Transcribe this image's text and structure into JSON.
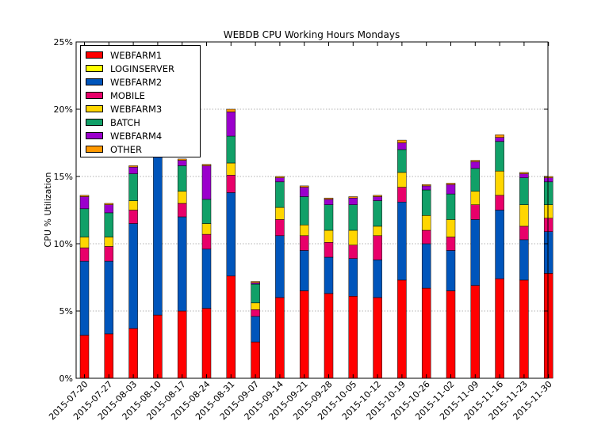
{
  "chart_data": {
    "type": "bar",
    "stacked": true,
    "title": "WEBDB CPU Working Hours Mondays",
    "xlabel": "",
    "ylabel": "CPU % Utilization",
    "ylim": [
      0,
      25
    ],
    "yticks": [
      0,
      5,
      10,
      15,
      20,
      25
    ],
    "ytick_labels": [
      "0%",
      "5%",
      "10%",
      "15%",
      "20%",
      "25%"
    ],
    "grid": "horizontal",
    "legend_position": "top-left",
    "categories": [
      "2015-07-20",
      "2015-07-27",
      "2015-08-03",
      "2015-08-10",
      "2015-08-17",
      "2015-08-24",
      "2015-08-31",
      "2015-09-07",
      "2015-09-14",
      "2015-09-21",
      "2015-09-28",
      "2015-10-05",
      "2015-10-12",
      "2015-10-19",
      "2015-10-26",
      "2015-11-02",
      "2015-11-09",
      "2015-11-16",
      "2015-11-23",
      "2015-11-30"
    ],
    "series": [
      {
        "name": "WEBFARM1",
        "color": "#ff0000",
        "values": [
          3.2,
          3.3,
          3.7,
          4.7,
          5.0,
          5.2,
          7.6,
          2.7,
          6.0,
          6.5,
          6.3,
          6.1,
          6.0,
          7.3,
          6.7,
          6.5,
          6.9,
          7.4,
          7.3,
          7.8
        ]
      },
      {
        "name": "LOGINSERVER",
        "color": "#ffff00",
        "values": [
          0,
          0,
          0,
          0,
          0,
          0,
          0,
          0,
          0,
          0,
          0,
          0,
          0,
          0,
          0,
          0,
          0,
          0,
          0,
          0
        ]
      },
      {
        "name": "WEBFARM2",
        "color": "#0055bb",
        "values": [
          5.5,
          5.4,
          7.8,
          12.3,
          7.0,
          4.4,
          6.2,
          1.9,
          4.6,
          3.0,
          2.7,
          2.8,
          2.8,
          5.8,
          3.3,
          3.0,
          4.9,
          5.1,
          3.0,
          3.1
        ]
      },
      {
        "name": "MOBILE",
        "color": "#e8006a",
        "values": [
          1.0,
          1.1,
          1.0,
          0,
          1.0,
          1.1,
          1.3,
          0.5,
          1.2,
          1.1,
          1.1,
          1.0,
          1.8,
          1.1,
          1.0,
          1.0,
          1.1,
          1.1,
          1.0,
          1.0
        ]
      },
      {
        "name": "WEBFARM3",
        "color": "#ffd600",
        "values": [
          0.8,
          0.7,
          0.7,
          0,
          0.9,
          0.8,
          0.9,
          0.5,
          0.9,
          0.8,
          0.9,
          1.1,
          0.7,
          1.1,
          1.1,
          1.3,
          1.0,
          1.8,
          1.6,
          1.0
        ]
      },
      {
        "name": "BATCH",
        "color": "#11a068",
        "values": [
          2.1,
          1.8,
          2.0,
          0,
          1.9,
          1.8,
          2.0,
          1.4,
          1.9,
          2.1,
          1.9,
          1.9,
          1.9,
          1.7,
          1.9,
          1.9,
          1.7,
          2.2,
          2.0,
          1.7
        ]
      },
      {
        "name": "WEBFARM4",
        "color": "#9b00cc",
        "values": [
          0.9,
          0.6,
          0.5,
          0,
          0.4,
          2.5,
          1.8,
          0.1,
          0.3,
          0.7,
          0.4,
          0.5,
          0.3,
          0.5,
          0.3,
          0.7,
          0.5,
          0.3,
          0.3,
          0.3
        ]
      },
      {
        "name": "OTHER",
        "color": "#ff9900",
        "values": [
          0.1,
          0.1,
          0.1,
          0,
          0.1,
          0.1,
          0.2,
          0.1,
          0.1,
          0.1,
          0.1,
          0.1,
          0.1,
          0.2,
          0.1,
          0.1,
          0.1,
          0.2,
          0.1,
          0.1
        ]
      }
    ]
  }
}
